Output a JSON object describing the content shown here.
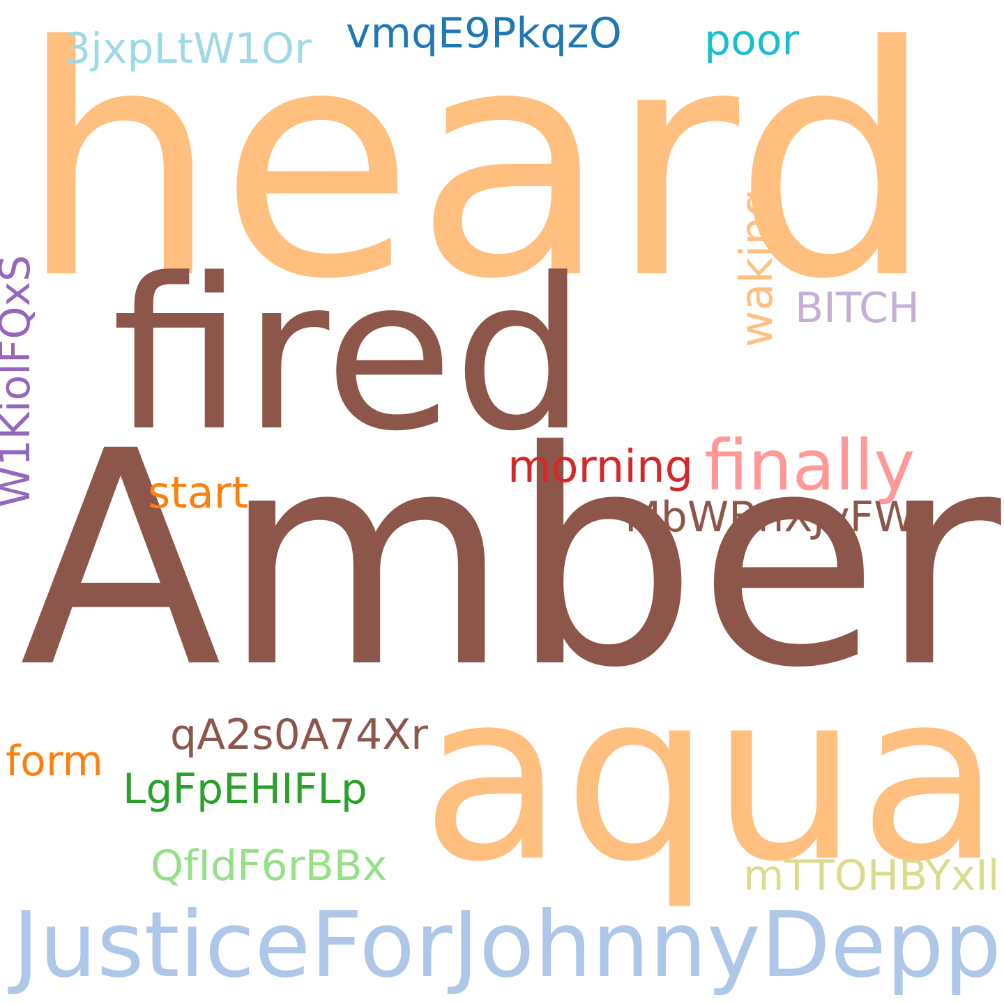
{
  "cloud": {
    "words": {
      "heard": {
        "text": "heard",
        "color": "#ffbf7e"
      },
      "fired": {
        "text": "fired",
        "color": "#8c564b"
      },
      "amber": {
        "text": "Amber",
        "color": "#8c564b"
      },
      "aqua": {
        "text": "aqua",
        "color": "#ffbf7e"
      },
      "justice": {
        "text": "JusticeForJohnnyDepp",
        "color": "#aec7e8"
      },
      "finally": {
        "text": "finally",
        "color": "#ff9896"
      },
      "morning": {
        "text": "morning",
        "color": "#d62728"
      },
      "start": {
        "text": "start",
        "color": "#ff7f0e"
      },
      "mbw": {
        "text": "MbWBnXJvFW",
        "color": "#8c564b"
      },
      "bitch": {
        "text": "BITCH",
        "color": "#c5b0d5"
      },
      "poor": {
        "text": "poor",
        "color": "#17becf"
      },
      "vmq": {
        "text": "vmqE9PkqzO",
        "color": "#1f77b4"
      },
      "three_jx": {
        "text": "3jxpLtW1Or",
        "color": "#9edae5"
      },
      "qa2": {
        "text": "qA2s0A74Xr",
        "color": "#8c564b"
      },
      "form": {
        "text": "form",
        "color": "#ff7f0e"
      },
      "lgf": {
        "text": "LgFpEHIFLp",
        "color": "#2ca02c"
      },
      "qfi": {
        "text": "QfIdF6rBBx",
        "color": "#98df8a"
      },
      "mtt": {
        "text": "mTTOHBYxIl",
        "color": "#dbdb8d"
      },
      "waking": {
        "text": "waking",
        "color": "#ffbf7e"
      },
      "w1k": {
        "text": "W1KiolFQxS",
        "color": "#9467bd"
      }
    }
  }
}
